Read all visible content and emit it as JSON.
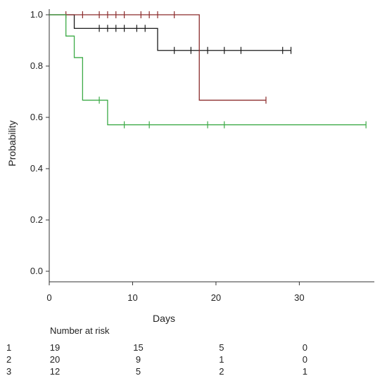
{
  "chart_data": {
    "type": "line",
    "subtype": "kaplan-meier",
    "title": "",
    "xlabel": "Days",
    "ylabel": "Probability",
    "xlim": [
      0,
      39
    ],
    "ylim": [
      0,
      1.0
    ],
    "x_ticks": [
      0,
      10,
      20,
      30
    ],
    "y_ticks": [
      0.0,
      0.2,
      0.4,
      0.6,
      0.8,
      1.0
    ],
    "y_tick_labels": [
      "0.0",
      "0.2",
      "0.4",
      "0.6",
      "0.8",
      "1.0"
    ],
    "grid": false,
    "legend": "none",
    "series": [
      {
        "key": "1",
        "color": "#1a1a1a",
        "steps": [
          [
            0,
            1.0
          ],
          [
            3,
            0.947
          ],
          [
            13,
            0.861
          ],
          [
            29,
            0.861
          ]
        ],
        "censored": [
          6,
          7,
          8,
          9,
          10.5,
          11.5,
          15,
          17,
          19,
          21,
          23,
          28,
          29
        ]
      },
      {
        "key": "2",
        "color": "#8b2b2b",
        "steps": [
          [
            0,
            1.0
          ],
          [
            18,
            0.667
          ],
          [
            26,
            0.667
          ]
        ],
        "censored": [
          2,
          4,
          6,
          7,
          8,
          9,
          11,
          12,
          13,
          15,
          26
        ]
      },
      {
        "key": "3",
        "color": "#3caa46",
        "steps": [
          [
            0,
            1.0
          ],
          [
            2,
            0.917
          ],
          [
            3,
            0.833
          ],
          [
            4,
            0.667
          ],
          [
            7,
            0.571
          ],
          [
            38,
            0.571
          ]
        ],
        "censored": [
          6,
          9,
          12,
          19,
          21,
          38
        ]
      }
    ],
    "risk_table": {
      "title": "Number at risk",
      "times": [
        0,
        10,
        20,
        30
      ],
      "rows": [
        {
          "label": "1",
          "counts": [
            "19",
            "15",
            "5",
            "0"
          ]
        },
        {
          "label": "2",
          "counts": [
            "20",
            "9",
            "1",
            "0"
          ]
        },
        {
          "label": "3",
          "counts": [
            "12",
            "5",
            "2",
            "1"
          ]
        }
      ]
    }
  }
}
